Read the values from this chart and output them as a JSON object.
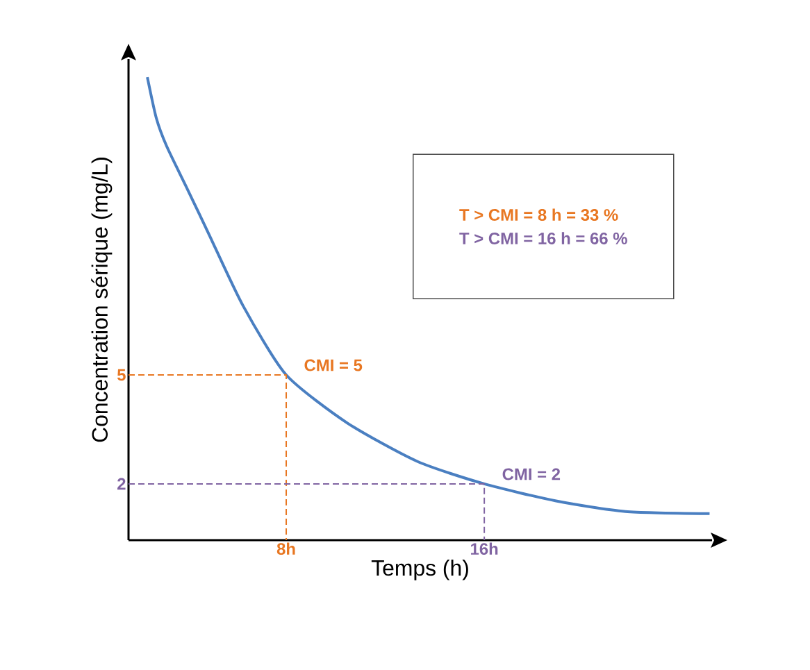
{
  "chart_data": {
    "type": "line",
    "xlabel": "Temps (h)",
    "ylabel": "Concentration sérique (mg/L)",
    "xlim": [
      1.63,
      25.2
    ],
    "ylim": [
      0.45,
      13.7
    ],
    "xticks": [
      {
        "value": 8,
        "label": "8h"
      },
      {
        "value": 16,
        "label": "16h"
      }
    ],
    "yticks": [
      2,
      5
    ],
    "marker": "none",
    "grid": false,
    "series": [
      {
        "color": "#4a7fc1",
        "x": [
          2.39,
          2.75,
          3.17,
          4.02,
          4.86,
          6.26,
          8,
          10.48,
          13.29,
          16,
          18.9,
          21.7,
          25.1
        ],
        "values": [
          13.2,
          12.08,
          11.3,
          10.1,
          8.9,
          6.9,
          5,
          3.67,
          2.62,
          2,
          1.53,
          1.24,
          1.18
        ]
      },
      {
        "color": "#e87722",
        "line_style": "dashed",
        "x": [
          1.63,
          8,
          8
        ],
        "values": [
          5,
          5,
          0.45
        ]
      },
      {
        "color": "#8064a2",
        "line_style": "dashed",
        "x": [
          1.63,
          16,
          16
        ],
        "values": [
          2,
          2,
          0.45
        ]
      }
    ],
    "annotations": [
      "T > CMI = 8 h = 33 %",
      "T > CMI = 16 h = 66 %",
      {
        "text": "CMI = 5",
        "x": 8,
        "y": 5
      },
      {
        "text": "CMI = 2",
        "x": 16,
        "y": 2
      }
    ]
  }
}
